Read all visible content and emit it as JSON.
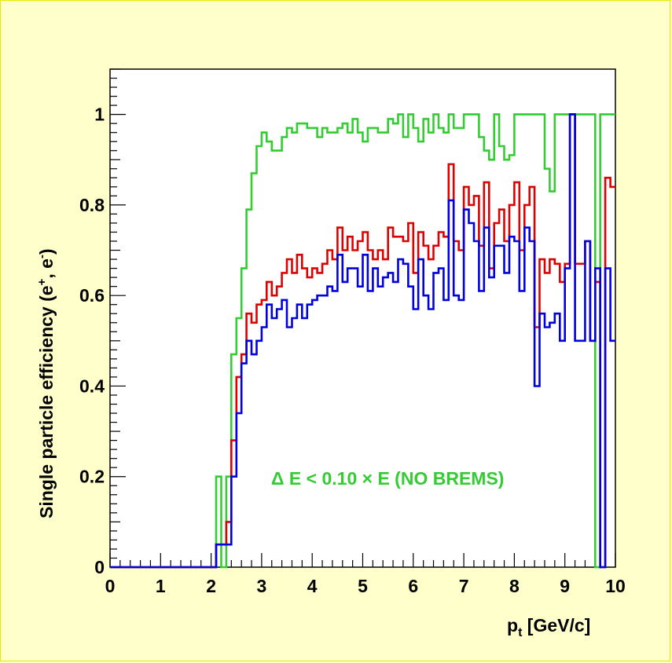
{
  "chart_data": {
    "type": "line",
    "style": "histogram-step",
    "xlim": [
      0,
      10
    ],
    "ylim": [
      0,
      1.1
    ],
    "xticks": [
      "0",
      "1",
      "2",
      "3",
      "4",
      "5",
      "6",
      "7",
      "8",
      "9",
      "10"
    ],
    "yticks": [
      "0",
      "0.2",
      "0.4",
      "0.6",
      "0.8",
      "1"
    ],
    "xlabel_main": "p",
    "xlabel_sub": "t",
    "xlabel_rest": " [GeV/c]",
    "ylabel_main": "Single particle efficiency (e",
    "ylabel_sup1": "+",
    "ylabel_mid": ", e",
    "ylabel_sup2": "-",
    "ylabel_end": ")",
    "annotation": "Δ E < 0.10 × E (NO BREMS)",
    "annotation_color": "#33cc33",
    "grid": false,
    "bin_width": 0.1,
    "series": [
      {
        "color": "#33cc33",
        "x": [
          0.05,
          0.15,
          0.25,
          0.35,
          0.45,
          0.55,
          0.65,
          0.75,
          0.85,
          0.95,
          1.05,
          1.15,
          1.25,
          1.35,
          1.45,
          1.55,
          1.65,
          1.75,
          1.85,
          1.95,
          2.05,
          2.15,
          2.25,
          2.35,
          2.45,
          2.55,
          2.65,
          2.75,
          2.85,
          2.95,
          3.05,
          3.15,
          3.25,
          3.35,
          3.45,
          3.55,
          3.65,
          3.75,
          3.85,
          3.95,
          4.05,
          4.15,
          4.25,
          4.35,
          4.45,
          4.55,
          4.65,
          4.75,
          4.85,
          4.95,
          5.05,
          5.15,
          5.25,
          5.35,
          5.45,
          5.55,
          5.65,
          5.75,
          5.85,
          5.95,
          6.05,
          6.15,
          6.25,
          6.35,
          6.45,
          6.55,
          6.65,
          6.75,
          6.85,
          6.95,
          7.05,
          7.15,
          7.25,
          7.35,
          7.45,
          7.55,
          7.65,
          7.75,
          7.85,
          7.95,
          8.05,
          8.15,
          8.25,
          8.35,
          8.45,
          8.55,
          8.65,
          8.75,
          8.85,
          8.95,
          9.05,
          9.15,
          9.25,
          9.35,
          9.45,
          9.55,
          9.65,
          9.75,
          9.85,
          9.95
        ],
        "values": [
          0,
          0,
          0,
          0,
          0,
          0,
          0,
          0,
          0,
          0,
          0,
          0,
          0,
          0,
          0,
          0,
          0,
          0,
          0,
          0,
          0,
          0.2,
          0,
          0.2,
          0.47,
          0.55,
          0.66,
          0.79,
          0.87,
          0.93,
          0.96,
          0.94,
          0.92,
          0.92,
          0.95,
          0.97,
          0.96,
          0.98,
          0.98,
          0.97,
          0.97,
          0.95,
          0.97,
          0.96,
          0.96,
          0.97,
          0.98,
          0.96,
          0.99,
          0.96,
          0.94,
          0.97,
          0.97,
          0.96,
          0.96,
          0.99,
          0.98,
          1,
          0.95,
          1,
          0.97,
          0.94,
          0.99,
          0.96,
          1,
          0.97,
          0.96,
          1,
          0.97,
          0.97,
          1,
          1,
          1,
          0.95,
          0.92,
          0.9,
          1,
          0.93,
          0.9,
          0.91,
          1,
          1,
          1,
          1,
          1,
          1,
          0.88,
          0.83,
          1,
          1,
          1,
          1,
          1,
          1,
          1,
          1,
          0,
          1,
          1,
          1
        ]
      },
      {
        "color": "#dd0000",
        "x": [
          0.05,
          0.15,
          0.25,
          0.35,
          0.45,
          0.55,
          0.65,
          0.75,
          0.85,
          0.95,
          1.05,
          1.15,
          1.25,
          1.35,
          1.45,
          1.55,
          1.65,
          1.75,
          1.85,
          1.95,
          2.05,
          2.15,
          2.25,
          2.35,
          2.45,
          2.55,
          2.65,
          2.75,
          2.85,
          2.95,
          3.05,
          3.15,
          3.25,
          3.35,
          3.45,
          3.55,
          3.65,
          3.75,
          3.85,
          3.95,
          4.05,
          4.15,
          4.25,
          4.35,
          4.45,
          4.55,
          4.65,
          4.75,
          4.85,
          4.95,
          5.05,
          5.15,
          5.25,
          5.35,
          5.45,
          5.55,
          5.65,
          5.75,
          5.85,
          5.95,
          6.05,
          6.15,
          6.25,
          6.35,
          6.45,
          6.55,
          6.65,
          6.75,
          6.85,
          6.95,
          7.05,
          7.15,
          7.25,
          7.35,
          7.45,
          7.55,
          7.65,
          7.75,
          7.85,
          7.95,
          8.05,
          8.15,
          8.25,
          8.35,
          8.45,
          8.55,
          8.65,
          8.75,
          8.85,
          8.95,
          9.05,
          9.15,
          9.25,
          9.35,
          9.45,
          9.55,
          9.65,
          9.75,
          9.85,
          9.95
        ],
        "values": [
          0,
          0,
          0,
          0,
          0,
          0,
          0,
          0,
          0,
          0,
          0,
          0,
          0,
          0,
          0,
          0,
          0,
          0,
          0,
          0,
          0,
          0.05,
          0.05,
          0.1,
          0.28,
          0.42,
          0.47,
          0.56,
          0.54,
          0.58,
          0.59,
          0.63,
          0.6,
          0.62,
          0.65,
          0.68,
          0.65,
          0.69,
          0.66,
          0.64,
          0.66,
          0.65,
          0.67,
          0.7,
          0.68,
          0.75,
          0.7,
          0.73,
          0.7,
          0.72,
          0.74,
          0.7,
          0.68,
          0.7,
          0.68,
          0.75,
          0.73,
          0.73,
          0.72,
          0.76,
          0.65,
          0.74,
          0.71,
          0.68,
          0.71,
          0.74,
          0.73,
          0.89,
          0.72,
          0.7,
          0.84,
          0.8,
          0.82,
          0.71,
          0.85,
          0.66,
          0.76,
          0.79,
          0.72,
          0.8,
          0.85,
          0.7,
          0.8,
          0.84,
          0.53,
          0.68,
          0.65,
          0.68,
          0.67,
          0.63,
          0.67,
          1,
          0.67,
          0.67,
          0.72,
          0.5,
          0.63,
          0,
          0.86,
          0.84
        ]
      },
      {
        "color": "#0000dd",
        "x": [
          0.05,
          0.15,
          0.25,
          0.35,
          0.45,
          0.55,
          0.65,
          0.75,
          0.85,
          0.95,
          1.05,
          1.15,
          1.25,
          1.35,
          1.45,
          1.55,
          1.65,
          1.75,
          1.85,
          1.95,
          2.05,
          2.15,
          2.25,
          2.35,
          2.45,
          2.55,
          2.65,
          2.75,
          2.85,
          2.95,
          3.05,
          3.15,
          3.25,
          3.35,
          3.45,
          3.55,
          3.65,
          3.75,
          3.85,
          3.95,
          4.05,
          4.15,
          4.25,
          4.35,
          4.45,
          4.55,
          4.65,
          4.75,
          4.85,
          4.95,
          5.05,
          5.15,
          5.25,
          5.35,
          5.45,
          5.55,
          5.65,
          5.75,
          5.85,
          5.95,
          6.05,
          6.15,
          6.25,
          6.35,
          6.45,
          6.55,
          6.65,
          6.75,
          6.85,
          6.95,
          7.05,
          7.15,
          7.25,
          7.35,
          7.45,
          7.55,
          7.65,
          7.75,
          7.85,
          7.95,
          8.05,
          8.15,
          8.25,
          8.35,
          8.45,
          8.55,
          8.65,
          8.75,
          8.85,
          8.95,
          9.05,
          9.15,
          9.25,
          9.35,
          9.45,
          9.55,
          9.65,
          9.75,
          9.85,
          9.95
        ],
        "values": [
          0,
          0,
          0,
          0,
          0,
          0,
          0,
          0,
          0,
          0,
          0,
          0,
          0,
          0,
          0,
          0,
          0,
          0,
          0,
          0,
          0,
          0.05,
          0.05,
          0.05,
          0.2,
          0.34,
          0.45,
          0.5,
          0.47,
          0.5,
          0.53,
          0.58,
          0.55,
          0.57,
          0.59,
          0.53,
          0.55,
          0.58,
          0.55,
          0.58,
          0.59,
          0.6,
          0.6,
          0.62,
          0.61,
          0.69,
          0.63,
          0.66,
          0.66,
          0.62,
          0.69,
          0.61,
          0.66,
          0.62,
          0.64,
          0.65,
          0.63,
          0.68,
          0.67,
          0.62,
          0.57,
          0.68,
          0.6,
          0.57,
          0.65,
          0.66,
          0.59,
          0.81,
          0.6,
          0.59,
          0.79,
          0.76,
          0.72,
          0.61,
          0.75,
          0.64,
          0.71,
          0.71,
          0.65,
          0.73,
          0.72,
          0.61,
          0.75,
          0.72,
          0.4,
          0.56,
          0.53,
          0.54,
          0.56,
          0.5,
          0.66,
          1,
          0.5,
          0.5,
          0.72,
          0.5,
          0.66,
          0,
          0.66,
          0.5
        ]
      }
    ]
  }
}
